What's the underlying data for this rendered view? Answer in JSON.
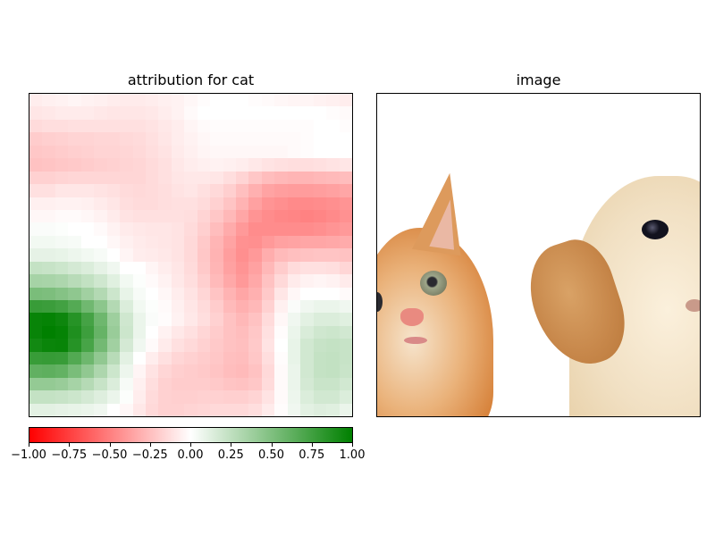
{
  "figure": {
    "left_title": "attribution for cat",
    "right_title": "image"
  },
  "colorbar": {
    "colors": {
      "min": "#ff0000",
      "mid": "#ffffff",
      "max": "#008000"
    },
    "ticks": [
      "−1.00",
      "−0.75",
      "−0.50",
      "−0.25",
      "0.00",
      "0.25",
      "0.50",
      "0.75",
      "1.00"
    ]
  },
  "photo": {
    "subjects": [
      "orange kitten (left)",
      "cream puppy (right)"
    ],
    "colors": {
      "kitten_fur": "#e39a4f",
      "kitten_light": "#f4dcc0",
      "puppy_fur": "#f0dfc2",
      "puppy_ear": "#c98a4c",
      "eye_dark": "#1a1a2a"
    }
  },
  "chart_data": [
    {
      "type": "heatmap",
      "title": "attribution for cat",
      "xlabel": "",
      "ylabel": "",
      "grid": false,
      "rows": 25,
      "cols": 25,
      "vmin": -1.0,
      "vmax": 1.0,
      "colormap": [
        "#ff0000",
        "#ffffff",
        "#008000"
      ],
      "colorbar": {
        "position": "bottom",
        "ticks": [
          -1.0,
          -0.75,
          -0.5,
          -0.25,
          0.0,
          0.25,
          0.5,
          0.75,
          1.0
        ]
      },
      "values": [
        [
          -0.07,
          -0.06,
          -0.05,
          -0.04,
          -0.05,
          -0.06,
          -0.07,
          -0.08,
          -0.08,
          -0.07,
          -0.06,
          -0.05,
          -0.03,
          -0.01,
          0.0,
          0.0,
          0.0,
          -0.01,
          -0.02,
          -0.03,
          -0.04,
          -0.04,
          -0.05,
          -0.06,
          -0.07
        ],
        [
          -0.1,
          -0.09,
          -0.08,
          -0.08,
          -0.08,
          -0.09,
          -0.1,
          -0.1,
          -0.1,
          -0.09,
          -0.07,
          -0.05,
          -0.02,
          0.0,
          0.0,
          0.0,
          0.0,
          0.0,
          0.0,
          0.0,
          0.0,
          0.0,
          0.0,
          -0.01,
          -0.02
        ],
        [
          -0.14,
          -0.13,
          -0.13,
          -0.12,
          -0.12,
          -0.12,
          -0.12,
          -0.12,
          -0.12,
          -0.11,
          -0.09,
          -0.07,
          -0.04,
          -0.02,
          -0.01,
          -0.01,
          -0.01,
          -0.01,
          -0.01,
          -0.01,
          -0.01,
          -0.01,
          0.0,
          0.0,
          -0.01
        ],
        [
          -0.2,
          -0.19,
          -0.18,
          -0.17,
          -0.17,
          -0.16,
          -0.16,
          -0.15,
          -0.14,
          -0.12,
          -0.1,
          -0.07,
          -0.05,
          -0.03,
          -0.02,
          -0.02,
          -0.02,
          -0.02,
          -0.02,
          -0.02,
          -0.02,
          -0.01,
          0.0,
          0.0,
          0.0
        ],
        [
          -0.22,
          -0.21,
          -0.2,
          -0.19,
          -0.18,
          -0.17,
          -0.17,
          -0.16,
          -0.15,
          -0.13,
          -0.11,
          -0.08,
          -0.06,
          -0.04,
          -0.03,
          -0.03,
          -0.03,
          -0.03,
          -0.03,
          -0.03,
          -0.02,
          -0.01,
          0.0,
          0.0,
          0.0
        ],
        [
          -0.24,
          -0.23,
          -0.22,
          -0.21,
          -0.2,
          -0.19,
          -0.18,
          -0.17,
          -0.16,
          -0.14,
          -0.12,
          -0.09,
          -0.07,
          -0.06,
          -0.05,
          -0.06,
          -0.07,
          -0.09,
          -0.11,
          -0.12,
          -0.13,
          -0.13,
          -0.12,
          -0.11,
          -0.1
        ],
        [
          -0.18,
          -0.18,
          -0.17,
          -0.16,
          -0.16,
          -0.16,
          -0.16,
          -0.16,
          -0.16,
          -0.14,
          -0.12,
          -0.1,
          -0.09,
          -0.09,
          -0.1,
          -0.13,
          -0.17,
          -0.22,
          -0.26,
          -0.28,
          -0.29,
          -0.29,
          -0.28,
          -0.27,
          -0.26
        ],
        [
          -0.12,
          -0.12,
          -0.1,
          -0.1,
          -0.1,
          -0.11,
          -0.12,
          -0.14,
          -0.15,
          -0.14,
          -0.13,
          -0.11,
          -0.1,
          -0.12,
          -0.15,
          -0.19,
          -0.25,
          -0.31,
          -0.36,
          -0.38,
          -0.39,
          -0.39,
          -0.38,
          -0.37,
          -0.35
        ],
        [
          -0.06,
          -0.06,
          -0.05,
          -0.05,
          -0.06,
          -0.08,
          -0.1,
          -0.13,
          -0.14,
          -0.14,
          -0.13,
          -0.12,
          -0.12,
          -0.14,
          -0.18,
          -0.23,
          -0.3,
          -0.37,
          -0.42,
          -0.44,
          -0.46,
          -0.46,
          -0.45,
          -0.44,
          -0.42
        ],
        [
          -0.03,
          -0.03,
          -0.02,
          -0.02,
          -0.03,
          -0.05,
          -0.08,
          -0.11,
          -0.12,
          -0.12,
          -0.12,
          -0.12,
          -0.13,
          -0.17,
          -0.22,
          -0.28,
          -0.35,
          -0.42,
          -0.45,
          -0.47,
          -0.48,
          -0.49,
          -0.48,
          -0.46,
          -0.43
        ],
        [
          0.02,
          0.02,
          0.01,
          0.0,
          0.0,
          -0.02,
          -0.05,
          -0.08,
          -0.09,
          -0.1,
          -0.1,
          -0.11,
          -0.14,
          -0.19,
          -0.26,
          -0.33,
          -0.4,
          -0.45,
          -0.45,
          -0.45,
          -0.45,
          -0.45,
          -0.44,
          -0.42,
          -0.4
        ],
        [
          0.05,
          0.05,
          0.04,
          0.03,
          0.0,
          0.0,
          -0.03,
          -0.06,
          -0.08,
          -0.09,
          -0.1,
          -0.11,
          -0.15,
          -0.21,
          -0.29,
          -0.36,
          -0.43,
          -0.44,
          -0.4,
          -0.37,
          -0.36,
          -0.35,
          -0.35,
          -0.34,
          -0.33
        ],
        [
          0.1,
          0.1,
          0.09,
          0.07,
          0.05,
          0.03,
          0.0,
          -0.04,
          -0.07,
          -0.08,
          -0.09,
          -0.11,
          -0.15,
          -0.22,
          -0.3,
          -0.38,
          -0.44,
          -0.4,
          -0.32,
          -0.27,
          -0.25,
          -0.24,
          -0.23,
          -0.23,
          -0.24
        ],
        [
          0.23,
          0.22,
          0.2,
          0.17,
          0.14,
          0.1,
          0.06,
          0.0,
          0.0,
          -0.04,
          -0.07,
          -0.1,
          -0.14,
          -0.21,
          -0.29,
          -0.37,
          -0.42,
          -0.37,
          -0.28,
          -0.2,
          -0.14,
          -0.12,
          -0.12,
          -0.13,
          -0.16
        ],
        [
          0.35,
          0.34,
          0.32,
          0.28,
          0.24,
          0.19,
          0.12,
          0.05,
          0.01,
          -0.02,
          -0.05,
          -0.09,
          -0.13,
          -0.19,
          -0.27,
          -0.34,
          -0.4,
          -0.34,
          -0.24,
          -0.15,
          -0.08,
          -0.05,
          -0.04,
          -0.05,
          -0.08
        ],
        [
          0.52,
          0.51,
          0.48,
          0.44,
          0.37,
          0.3,
          0.2,
          0.09,
          0.03,
          0.0,
          -0.03,
          -0.07,
          -0.11,
          -0.16,
          -0.23,
          -0.3,
          -0.35,
          -0.31,
          -0.21,
          -0.1,
          -0.03,
          0.0,
          0.0,
          0.0,
          -0.02
        ],
        [
          0.78,
          0.77,
          0.74,
          0.67,
          0.56,
          0.45,
          0.3,
          0.14,
          0.05,
          0.01,
          -0.02,
          -0.06,
          -0.1,
          -0.14,
          -0.2,
          -0.27,
          -0.31,
          -0.28,
          -0.18,
          -0.06,
          0.02,
          0.06,
          0.08,
          0.08,
          0.06
        ],
        [
          0.97,
          0.98,
          0.95,
          0.85,
          0.73,
          0.57,
          0.38,
          0.19,
          0.08,
          0.02,
          -0.01,
          -0.05,
          -0.09,
          -0.13,
          -0.18,
          -0.24,
          -0.28,
          -0.24,
          -0.14,
          -0.03,
          0.06,
          0.11,
          0.14,
          0.14,
          0.12
        ],
        [
          0.97,
          1.0,
          0.98,
          0.88,
          0.76,
          0.6,
          0.4,
          0.2,
          0.08,
          0.0,
          -0.05,
          -0.09,
          -0.12,
          -0.16,
          -0.2,
          -0.24,
          -0.26,
          -0.22,
          -0.12,
          -0.01,
          0.08,
          0.15,
          0.19,
          0.2,
          0.18
        ],
        [
          0.93,
          0.96,
          0.97,
          0.85,
          0.72,
          0.55,
          0.37,
          0.17,
          0.06,
          -0.02,
          -0.08,
          -0.12,
          -0.15,
          -0.18,
          -0.21,
          -0.24,
          -0.25,
          -0.21,
          -0.11,
          0.0,
          0.09,
          0.18,
          0.22,
          0.23,
          0.22
        ],
        [
          0.78,
          0.79,
          0.78,
          0.68,
          0.57,
          0.43,
          0.28,
          0.11,
          0.0,
          -0.07,
          -0.12,
          -0.16,
          -0.18,
          -0.2,
          -0.22,
          -0.25,
          -0.26,
          -0.22,
          -0.13,
          -0.01,
          0.09,
          0.18,
          0.23,
          0.24,
          0.22
        ],
        [
          0.62,
          0.63,
          0.61,
          0.52,
          0.43,
          0.32,
          0.2,
          0.07,
          -0.04,
          -0.11,
          -0.16,
          -0.19,
          -0.2,
          -0.21,
          -0.23,
          -0.26,
          -0.27,
          -0.24,
          -0.15,
          -0.02,
          0.08,
          0.18,
          0.23,
          0.24,
          0.21
        ],
        [
          0.42,
          0.42,
          0.4,
          0.35,
          0.29,
          0.22,
          0.14,
          0.03,
          -0.06,
          -0.13,
          -0.18,
          -0.2,
          -0.2,
          -0.2,
          -0.21,
          -0.23,
          -0.24,
          -0.22,
          -0.14,
          -0.02,
          0.08,
          0.17,
          0.21,
          0.21,
          0.18
        ],
        [
          0.23,
          0.23,
          0.22,
          0.2,
          0.17,
          0.13,
          0.08,
          0.01,
          -0.07,
          -0.14,
          -0.18,
          -0.19,
          -0.19,
          -0.18,
          -0.18,
          -0.19,
          -0.19,
          -0.17,
          -0.11,
          -0.02,
          0.07,
          0.14,
          0.18,
          0.18,
          0.14
        ],
        [
          0.11,
          0.11,
          0.1,
          0.09,
          0.08,
          0.06,
          0.0,
          -0.03,
          -0.09,
          -0.15,
          -0.18,
          -0.18,
          -0.17,
          -0.16,
          -0.15,
          -0.15,
          -0.15,
          -0.13,
          -0.08,
          -0.01,
          0.06,
          0.11,
          0.13,
          0.12,
          0.08
        ]
      ]
    }
  ]
}
